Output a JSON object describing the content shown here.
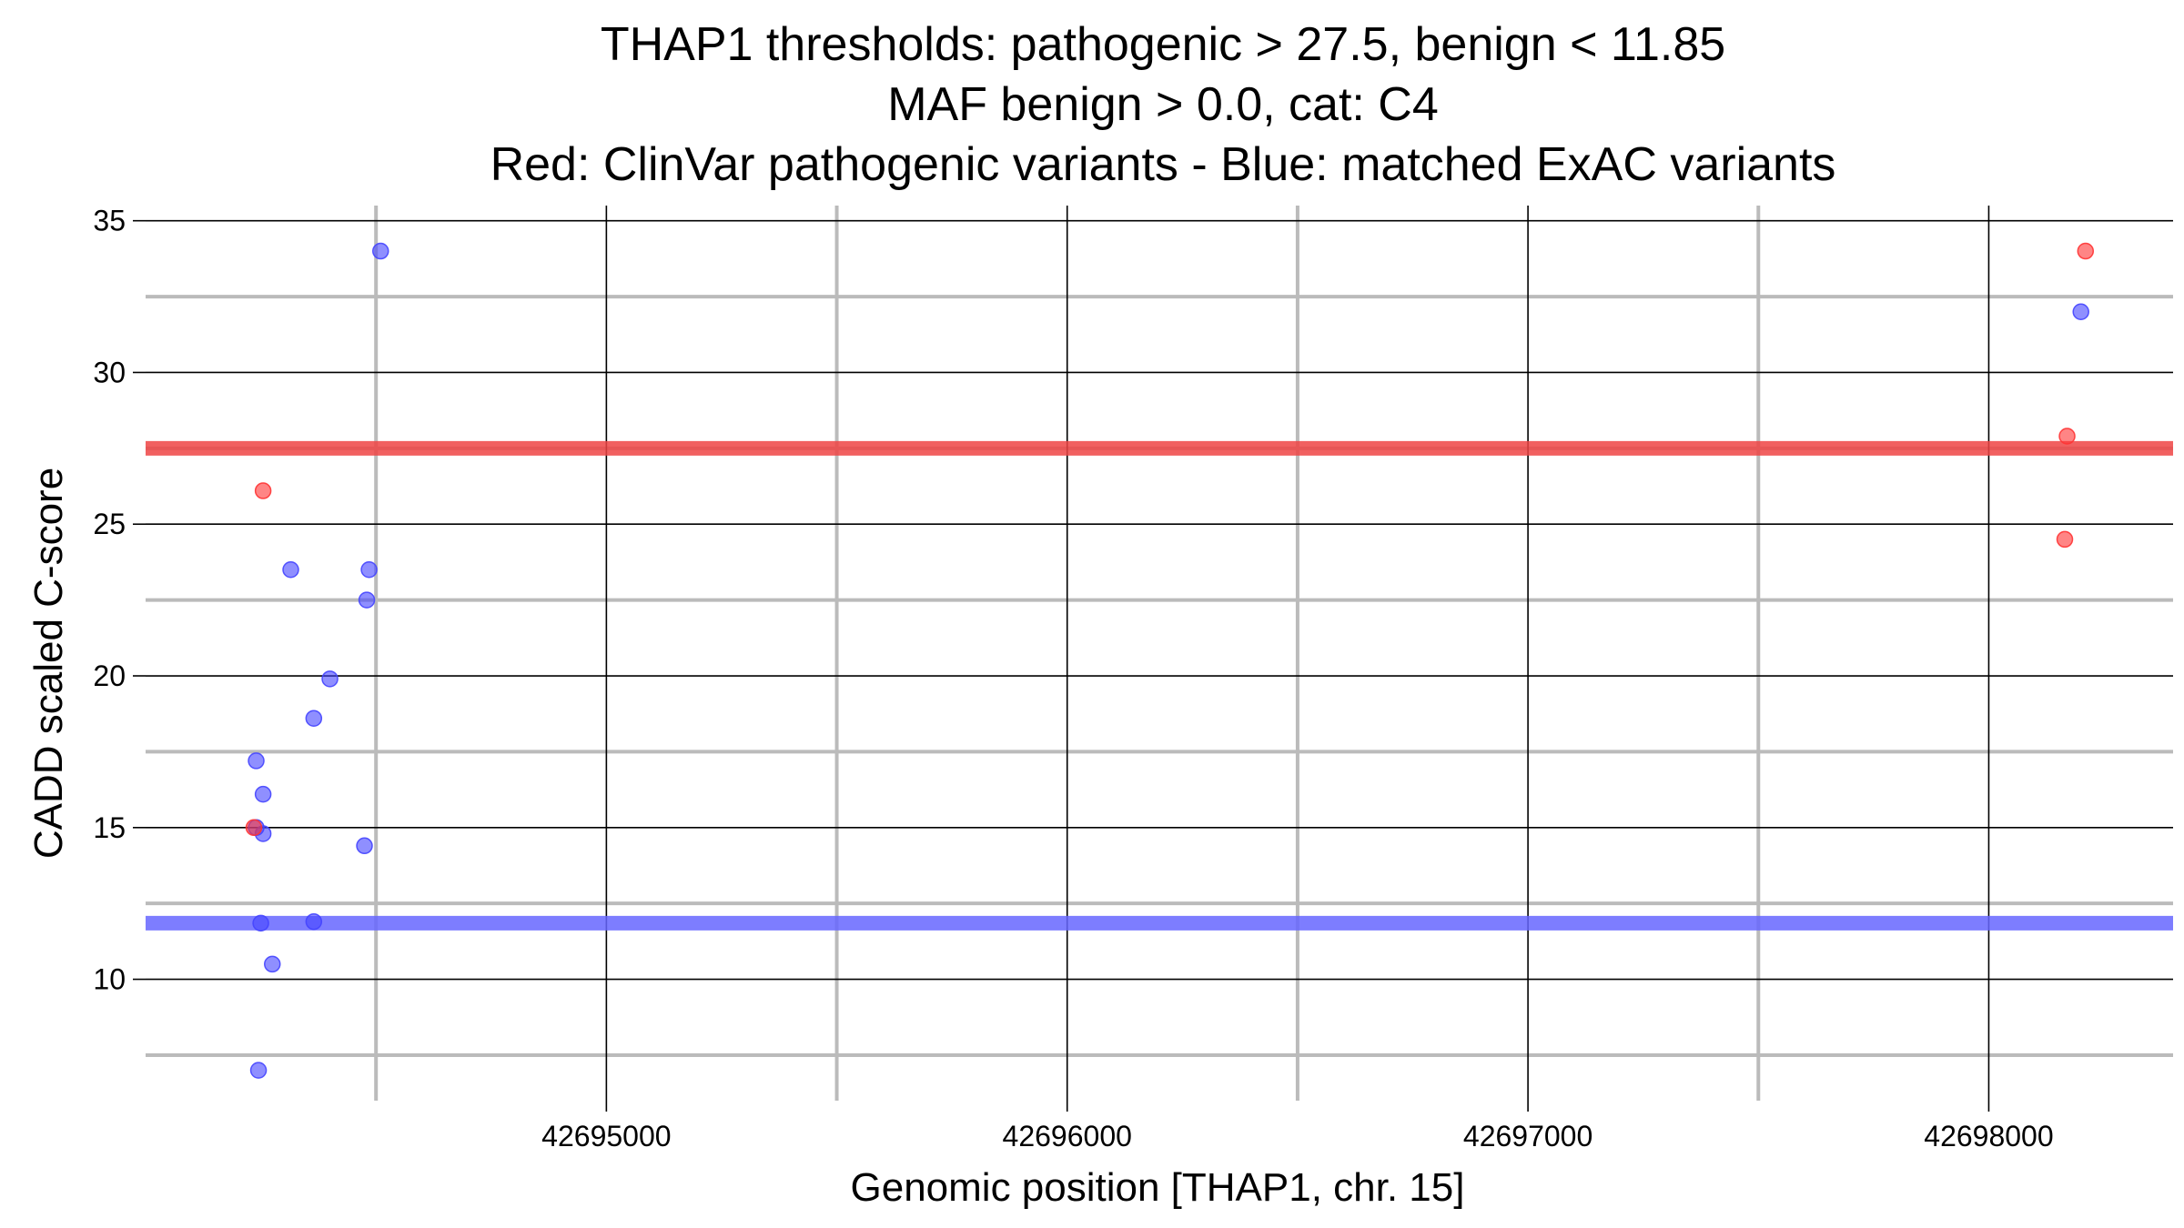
{
  "chart_data": {
    "type": "scatter",
    "title_lines": [
      "THAP1 thresholds: pathogenic > 27.5, benign < 11.85",
      "MAF benign > 0.0, cat: C4",
      "Red: ClinVar pathogenic variants - Blue: matched ExAC variants"
    ],
    "xlabel": "Genomic position [THAP1, chr. 15]",
    "ylabel": "CADD scaled C-score",
    "xlim": [
      42694000,
      42698400
    ],
    "ylim": [
      6,
      35.5
    ],
    "x_ticks": [
      42695000,
      42696000,
      42697000,
      42698000
    ],
    "x_tick_labels": [
      "42695000",
      "42696000",
      "42697000",
      "42698000"
    ],
    "x_minor_gridlines": [
      42694500,
      42695500,
      42696500,
      42697500
    ],
    "y_ticks": [
      10,
      15,
      20,
      25,
      30,
      35
    ],
    "y_tick_labels": [
      "10",
      "15",
      "20",
      "25",
      "30",
      "35"
    ],
    "y_minor_gridlines": [
      7.5,
      12.5,
      17.5,
      22.5,
      27.5,
      32.5
    ],
    "grid": true,
    "thresholds": [
      {
        "name": "pathogenic",
        "value": 27.5,
        "color": "#ee4444"
      },
      {
        "name": "benign",
        "value": 11.85,
        "color": "#6666ff"
      }
    ],
    "series": [
      {
        "name": "ClinVar pathogenic variants",
        "color": "#ff3333",
        "points": [
          {
            "x": 42694255,
            "y": 26.1
          },
          {
            "x": 42694235,
            "y": 15.0
          },
          {
            "x": 42698210,
            "y": 34.0
          },
          {
            "x": 42698170,
            "y": 27.9
          },
          {
            "x": 42698165,
            "y": 24.5
          }
        ]
      },
      {
        "name": "matched ExAC variants",
        "color": "#4444ff",
        "points": [
          {
            "x": 42694510,
            "y": 34.0
          },
          {
            "x": 42698200,
            "y": 32.0
          },
          {
            "x": 42694315,
            "y": 23.5
          },
          {
            "x": 42694485,
            "y": 23.5
          },
          {
            "x": 42694480,
            "y": 22.5
          },
          {
            "x": 42694400,
            "y": 19.9
          },
          {
            "x": 42694365,
            "y": 18.6
          },
          {
            "x": 42694240,
            "y": 17.2
          },
          {
            "x": 42694255,
            "y": 16.1
          },
          {
            "x": 42694240,
            "y": 15.0
          },
          {
            "x": 42694255,
            "y": 14.8
          },
          {
            "x": 42694475,
            "y": 14.4
          },
          {
            "x": 42694250,
            "y": 11.85
          },
          {
            "x": 42694365,
            "y": 11.9
          },
          {
            "x": 42694275,
            "y": 10.5
          },
          {
            "x": 42694245,
            "y": 7.0
          }
        ]
      }
    ]
  }
}
